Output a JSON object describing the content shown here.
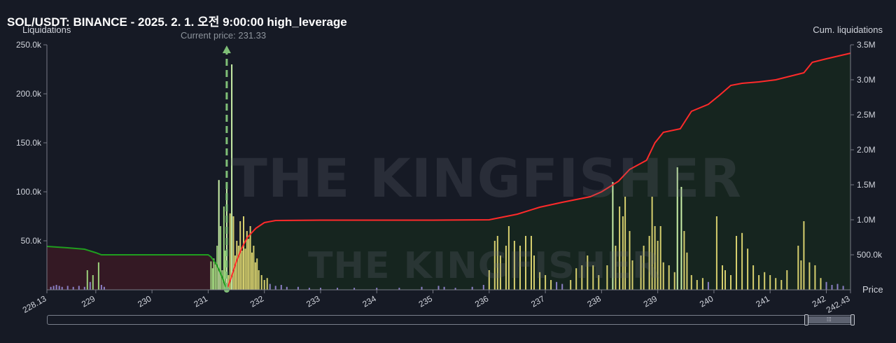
{
  "title": "SOL/USDT: BINANCE - 2025. 2. 1. 오전 9:00:00 high_leverage",
  "left_axis_title": "Liquidations",
  "right_axis_title": "Cum. liquidations",
  "price_axis_title": "Price",
  "current_price_label": "Current price: 231.33",
  "watermark": "THE KINGFISHER",
  "colors": {
    "background": "#161a25",
    "short_bar": "#d6cf6e",
    "long_bar": "#9ccf7a",
    "small_bar": "#8b7fc6",
    "cum_short_line": "#ff2a2a",
    "cum_long_line": "#1f9e1f",
    "area_long": "#3a1a24",
    "area_short": "#16281e",
    "current_price": "#7fbf77",
    "axis": "#787b86",
    "text": "#d1d4dc"
  },
  "chart_data": {
    "type": "bar",
    "title": "SOL/USDT: BINANCE - 2025. 2. 1. 오전 9:00:00 high_leverage",
    "xlabel": "Price",
    "ylabel": "Liquidations",
    "y2label": "Cum. liquidations",
    "xlim": [
      228.13,
      242.43
    ],
    "ylim": [
      0,
      250000
    ],
    "y2lim": [
      0,
      3500000
    ],
    "x_ticks": [
      "228.13",
      "229",
      "230",
      "231",
      "232",
      "233",
      "234",
      "235",
      "236",
      "237",
      "238",
      "239",
      "240",
      "241",
      "242",
      "242.43"
    ],
    "y_ticks": [
      "50.0k",
      "100.0k",
      "150.0k",
      "200.0k",
      "250.0k"
    ],
    "y2_ticks": [
      "500.0k",
      "1.0M",
      "1.5M",
      "2.0M",
      "2.5M",
      "3.0M",
      "3.5M"
    ],
    "current_price": 231.33,
    "grid": false,
    "series": [
      {
        "kind": "bar",
        "points": [
          [
            228.2,
            3000
          ],
          [
            228.25,
            4000
          ],
          [
            228.3,
            5000
          ],
          [
            228.35,
            4000
          ],
          [
            228.4,
            3000
          ],
          [
            228.5,
            4000
          ],
          [
            228.6,
            3000
          ],
          [
            228.7,
            4000
          ],
          [
            228.8,
            3000
          ],
          [
            228.85,
            20000
          ],
          [
            228.9,
            8000
          ],
          [
            228.95,
            15000
          ],
          [
            229.05,
            28000
          ],
          [
            229.1,
            5000
          ],
          [
            229.15,
            3000
          ],
          [
            231.05,
            29000
          ],
          [
            231.08,
            22000
          ],
          [
            231.1,
            32000
          ],
          [
            231.13,
            26000
          ],
          [
            231.16,
            45000
          ],
          [
            231.19,
            112000
          ],
          [
            231.22,
            65000
          ],
          [
            231.25,
            20000
          ],
          [
            231.28,
            85000
          ],
          [
            231.3,
            40000
          ],
          [
            231.33,
            105000
          ],
          [
            231.36,
            15000
          ],
          [
            231.39,
            78000
          ],
          [
            231.42,
            230000
          ],
          [
            231.45,
            75000
          ],
          [
            231.48,
            35000
          ],
          [
            231.51,
            50000
          ],
          [
            231.54,
            45000
          ],
          [
            231.57,
            70000
          ],
          [
            231.6,
            40000
          ],
          [
            231.63,
            75000
          ],
          [
            231.66,
            42000
          ],
          [
            231.69,
            60000
          ],
          [
            231.72,
            52000
          ],
          [
            231.75,
            65000
          ],
          [
            231.78,
            38000
          ],
          [
            231.81,
            45000
          ],
          [
            231.84,
            28000
          ],
          [
            231.87,
            32000
          ],
          [
            231.9,
            20000
          ],
          [
            231.95,
            15000
          ],
          [
            232.0,
            10000
          ],
          [
            232.05,
            12000
          ],
          [
            232.1,
            6000
          ],
          [
            232.2,
            4000
          ],
          [
            232.3,
            5000
          ],
          [
            232.4,
            3000
          ],
          [
            232.6,
            3000
          ],
          [
            232.8,
            2000
          ],
          [
            233.0,
            2000
          ],
          [
            233.3,
            2000
          ],
          [
            233.6,
            2000
          ],
          [
            234.0,
            2000
          ],
          [
            234.4,
            2000
          ],
          [
            234.8,
            3000
          ],
          [
            235.1,
            4000
          ],
          [
            235.2,
            3000
          ],
          [
            235.4,
            2000
          ],
          [
            235.7,
            3000
          ],
          [
            235.9,
            5000
          ],
          [
            236.0,
            20000
          ],
          [
            236.1,
            50000
          ],
          [
            236.15,
            55000
          ],
          [
            236.2,
            35000
          ],
          [
            236.3,
            45000
          ],
          [
            236.35,
            65000
          ],
          [
            236.45,
            50000
          ],
          [
            236.55,
            45000
          ],
          [
            236.65,
            55000
          ],
          [
            236.75,
            55000
          ],
          [
            236.8,
            35000
          ],
          [
            236.9,
            18000
          ],
          [
            237.0,
            15000
          ],
          [
            237.1,
            10000
          ],
          [
            237.2,
            8000
          ],
          [
            237.3,
            6000
          ],
          [
            237.45,
            10000
          ],
          [
            237.55,
            22000
          ],
          [
            237.65,
            25000
          ],
          [
            237.75,
            35000
          ],
          [
            237.85,
            25000
          ],
          [
            237.95,
            15000
          ],
          [
            238.1,
            25000
          ],
          [
            238.2,
            110000
          ],
          [
            238.25,
            45000
          ],
          [
            238.32,
            85000
          ],
          [
            238.38,
            75000
          ],
          [
            238.42,
            95000
          ],
          [
            238.5,
            60000
          ],
          [
            238.55,
            30000
          ],
          [
            238.7,
            35000
          ],
          [
            238.75,
            45000
          ],
          [
            238.85,
            55000
          ],
          [
            238.9,
            95000
          ],
          [
            238.95,
            65000
          ],
          [
            239.0,
            50000
          ],
          [
            239.05,
            65000
          ],
          [
            239.1,
            28000
          ],
          [
            239.2,
            25000
          ],
          [
            239.3,
            18000
          ],
          [
            239.35,
            125000
          ],
          [
            239.42,
            105000
          ],
          [
            239.47,
            60000
          ],
          [
            239.52,
            38000
          ],
          [
            239.6,
            15000
          ],
          [
            239.7,
            10000
          ],
          [
            239.8,
            12000
          ],
          [
            239.9,
            8000
          ],
          [
            240.05,
            75000
          ],
          [
            240.15,
            25000
          ],
          [
            240.2,
            20000
          ],
          [
            240.3,
            15000
          ],
          [
            240.4,
            55000
          ],
          [
            240.5,
            58000
          ],
          [
            240.6,
            42000
          ],
          [
            240.7,
            25000
          ],
          [
            240.8,
            15000
          ],
          [
            240.9,
            18000
          ],
          [
            241.0,
            15000
          ],
          [
            241.1,
            12000
          ],
          [
            241.2,
            10000
          ],
          [
            241.3,
            20000
          ],
          [
            241.5,
            45000
          ],
          [
            241.55,
            30000
          ],
          [
            241.6,
            70000
          ],
          [
            241.7,
            28000
          ],
          [
            241.8,
            25000
          ],
          [
            241.9,
            12000
          ],
          [
            242.0,
            8000
          ],
          [
            242.1,
            5000
          ],
          [
            242.2,
            6000
          ],
          [
            242.3,
            4000
          ]
        ]
      },
      {
        "kind": "line",
        "axis": "right",
        "points": [
          [
            228.13,
            620000
          ],
          [
            228.5,
            600000
          ],
          [
            228.8,
            580000
          ],
          [
            229.0,
            530000
          ],
          [
            229.1,
            500000
          ],
          [
            231.0,
            500000
          ],
          [
            231.05,
            470000
          ],
          [
            231.15,
            360000
          ],
          [
            231.25,
            180000
          ],
          [
            231.33,
            0
          ]
        ]
      },
      {
        "kind": "line",
        "axis": "right",
        "points": [
          [
            231.33,
            0
          ],
          [
            231.4,
            150000
          ],
          [
            231.5,
            400000
          ],
          [
            231.6,
            600000
          ],
          [
            231.7,
            750000
          ],
          [
            231.85,
            880000
          ],
          [
            232.0,
            960000
          ],
          [
            232.2,
            990000
          ],
          [
            233.0,
            995000
          ],
          [
            235.0,
            995000
          ],
          [
            236.0,
            1000000
          ],
          [
            236.5,
            1080000
          ],
          [
            236.9,
            1180000
          ],
          [
            237.3,
            1250000
          ],
          [
            237.8,
            1330000
          ],
          [
            238.0,
            1400000
          ],
          [
            238.3,
            1550000
          ],
          [
            238.5,
            1720000
          ],
          [
            238.8,
            1850000
          ],
          [
            238.95,
            2100000
          ],
          [
            239.1,
            2250000
          ],
          [
            239.4,
            2300000
          ],
          [
            239.6,
            2550000
          ],
          [
            239.9,
            2650000
          ],
          [
            240.1,
            2780000
          ],
          [
            240.3,
            2920000
          ],
          [
            240.5,
            2950000
          ],
          [
            240.8,
            2970000
          ],
          [
            241.1,
            3000000
          ],
          [
            241.4,
            3060000
          ],
          [
            241.6,
            3100000
          ],
          [
            241.75,
            3250000
          ],
          [
            242.0,
            3300000
          ],
          [
            242.43,
            3380000
          ]
        ]
      }
    ]
  }
}
